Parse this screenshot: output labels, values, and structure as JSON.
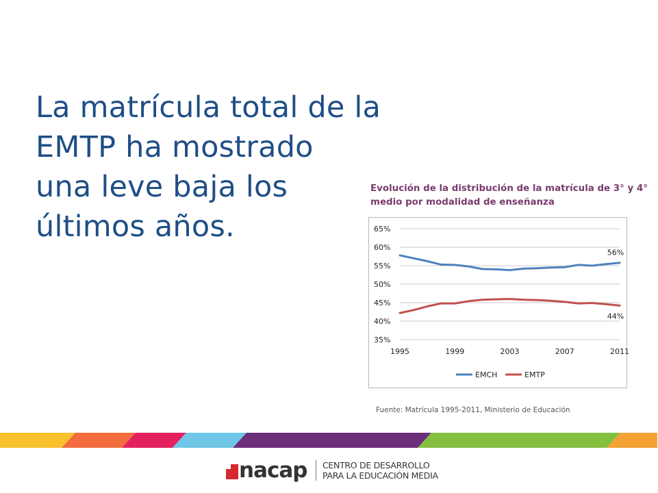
{
  "headline": {
    "lines": [
      "La matrícula total de la",
      "EMTP ha mostrado",
      "una leve baja los",
      "últimos años."
    ]
  },
  "chart_title": {
    "lines": [
      "Evolución de la distribución de la matrícula de 3° y 4°",
      "medio por modalidad de enseñanza"
    ]
  },
  "source": "Fuente:  Matrícula 1995-2011, Ministerio de Educación",
  "chart_data": {
    "type": "line",
    "title": "Evolución de la distribución de la matrícula de 3° y 4° medio por modalidad de enseñanza",
    "x": [
      1995,
      1996,
      1997,
      1998,
      1999,
      2000,
      2001,
      2002,
      2003,
      2004,
      2005,
      2006,
      2007,
      2008,
      2009,
      2010,
      2011
    ],
    "x_tick_labels": [
      "1995",
      "1999",
      "2003",
      "2007",
      "2011"
    ],
    "x_tick_values": [
      1995,
      1999,
      2003,
      2007,
      2011
    ],
    "y_tick_labels": [
      "65%",
      "60%",
      "55%",
      "50%",
      "45%",
      "40%",
      "35%"
    ],
    "y_tick_values": [
      65,
      60,
      55,
      50,
      45,
      40,
      35
    ],
    "ylim": [
      35,
      65
    ],
    "grid": true,
    "legend_position": "bottom",
    "series": [
      {
        "name": "EMCH",
        "color": "#4f81bd",
        "values": [
          57.8,
          57.0,
          56.2,
          55.3,
          55.2,
          54.8,
          54.1,
          54.0,
          53.8,
          54.2,
          54.3,
          54.5,
          54.6,
          55.2,
          55.0,
          55.4,
          55.8
        ],
        "end_label": "56%"
      },
      {
        "name": "EMTP",
        "color": "#c0504d",
        "values": [
          42.2,
          43.0,
          44.0,
          44.8,
          44.8,
          45.4,
          45.8,
          45.9,
          46.0,
          45.8,
          45.7,
          45.5,
          45.2,
          44.8,
          44.9,
          44.6,
          44.2
        ],
        "end_label": "44%"
      }
    ]
  },
  "footer": {
    "stripe_colors": [
      "#f9c12e",
      "#f26c3e",
      "#e3215f",
      "#70c6e6",
      "#6c2f7a",
      "#84bf3f",
      "#f4a233"
    ],
    "logo_word": "nacap",
    "logo_lines": [
      "CENTRO DE DESARROLLO",
      "PARA LA EDUCACIÓN MEDIA"
    ]
  }
}
